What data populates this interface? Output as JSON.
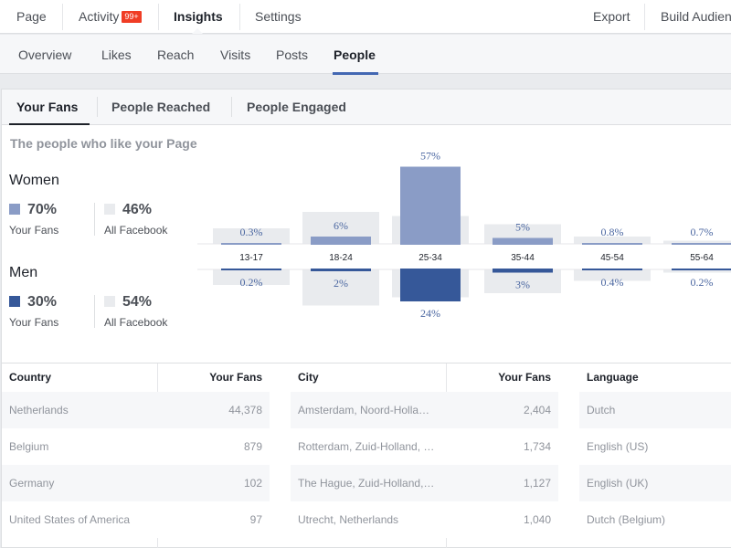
{
  "topnav": {
    "page": "Page",
    "activity": "Activity",
    "activity_badge": "99+",
    "insights": "Insights",
    "settings": "Settings",
    "export": "Export",
    "build_audience": "Build Audience"
  },
  "subnav": {
    "items": [
      "Overview",
      "Likes",
      "Reach",
      "Visits",
      "Posts",
      "People"
    ],
    "active": "People"
  },
  "tabs": {
    "items": [
      "Your Fans",
      "People Reached",
      "People Engaged"
    ],
    "active": "Your Fans"
  },
  "subtitle": "The people who like your Page",
  "gender": {
    "women": {
      "title": "Women",
      "fans_pct": "70%",
      "fans_label": "Your Fans",
      "facebook_pct": "46%",
      "facebook_label": "All Facebook"
    },
    "men": {
      "title": "Men",
      "fans_pct": "30%",
      "fans_label": "Your Fans",
      "facebook_pct": "54%",
      "facebook_label": "All Facebook"
    }
  },
  "colors": {
    "women": "#8a9cc6",
    "men": "#365899",
    "facebook": "#e9ebee",
    "value_text": "#4b67a1"
  },
  "age_chart": {
    "age_groups": [
      "13-17",
      "18-24",
      "25-34",
      "35-44",
      "45-54",
      "55-64"
    ],
    "women_fans": [
      0.3,
      6,
      57,
      5,
      0.8,
      0.7
    ],
    "men_fans": [
      0.2,
      2,
      24,
      3,
      0.4,
      0.2
    ],
    "women_labels": [
      "0.3%",
      "6%",
      "57%",
      "5%",
      "0.8%",
      "0.7%"
    ],
    "men_labels": [
      "0.2%",
      "2%",
      "24%",
      "3%",
      "0.4%",
      "0.2%"
    ],
    "women_all_facebook": [
      4,
      8,
      7,
      5,
      2,
      1
    ],
    "men_all_facebook": [
      4,
      9,
      7,
      6,
      3,
      1
    ]
  },
  "tables": {
    "country": {
      "header": "Country",
      "value_header": "Your Fans",
      "rows": [
        {
          "name": "Netherlands",
          "value": "44,378"
        },
        {
          "name": "Belgium",
          "value": "879"
        },
        {
          "name": "Germany",
          "value": "102"
        },
        {
          "name": "United States of America",
          "value": "97"
        }
      ]
    },
    "city": {
      "header": "City",
      "value_header": "Your Fans",
      "rows": [
        {
          "name": "Amsterdam, Noord-Holla…",
          "value": "2,404"
        },
        {
          "name": "Rotterdam, Zuid-Holland, …",
          "value": "1,734"
        },
        {
          "name": "The Hague, Zuid-Holland,…",
          "value": "1,127"
        },
        {
          "name": "Utrecht, Netherlands",
          "value": "1,040"
        }
      ]
    },
    "language": {
      "header": "Language",
      "rows": [
        {
          "name": "Dutch"
        },
        {
          "name": "English (US)"
        },
        {
          "name": "English (UK)"
        },
        {
          "name": "Dutch (Belgium)"
        }
      ]
    }
  }
}
